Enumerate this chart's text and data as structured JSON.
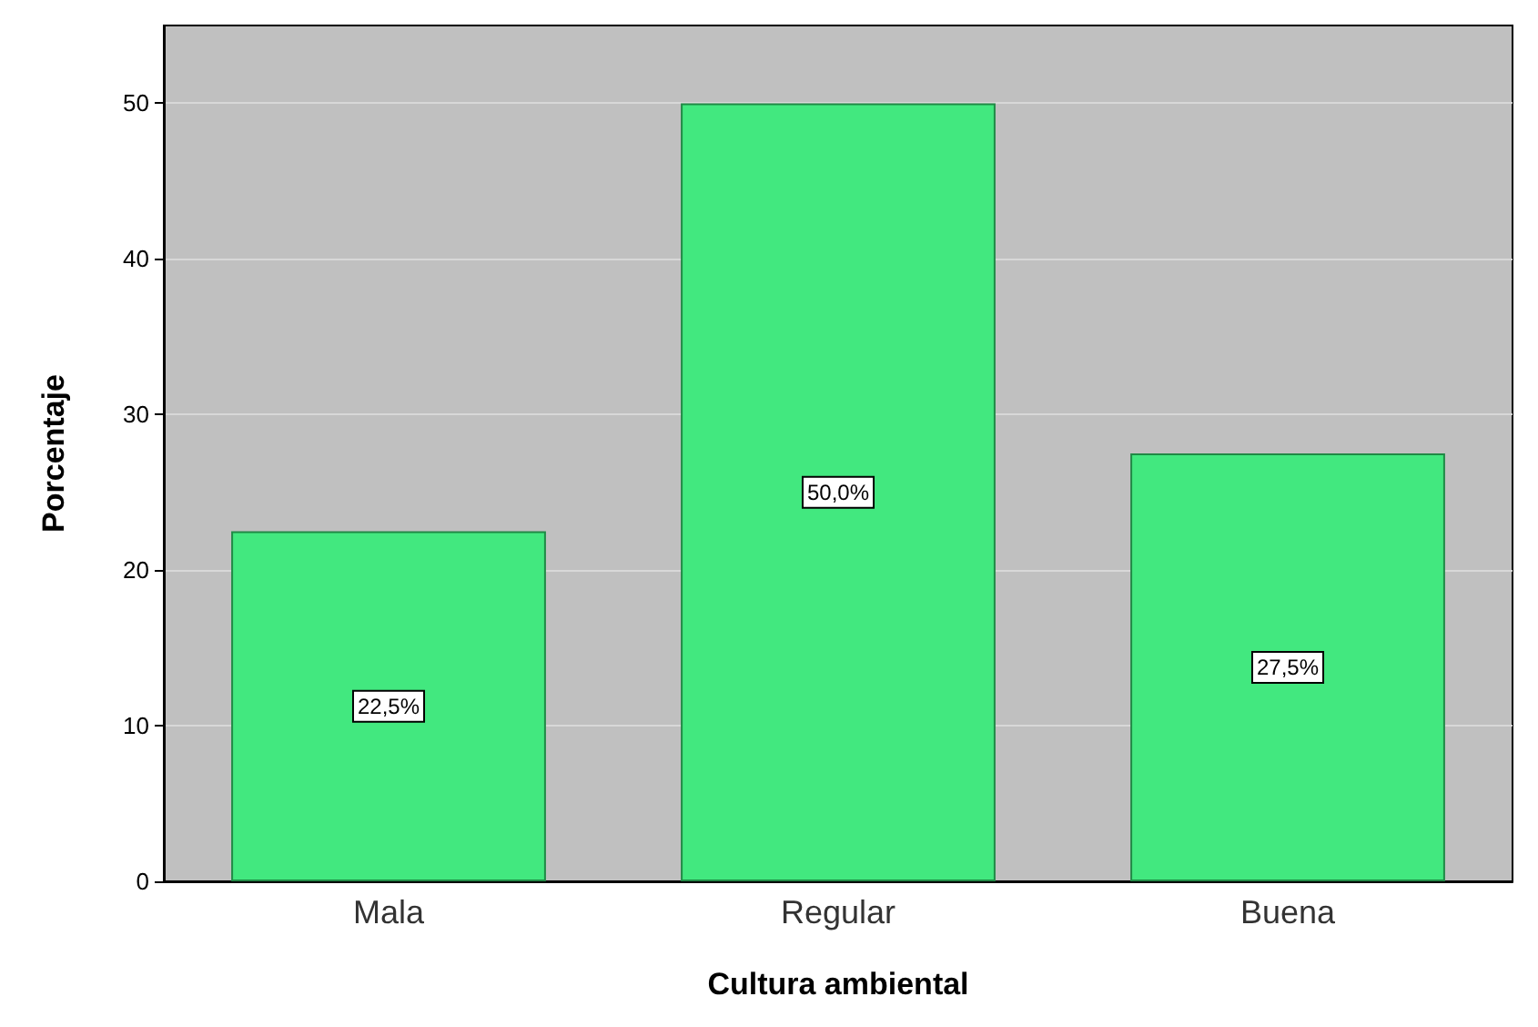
{
  "chart_data": {
    "type": "bar",
    "xlabel": "Cultura ambiental",
    "ylabel": "Porcentaje",
    "categories": [
      "Mala",
      "Regular",
      "Buena"
    ],
    "values": [
      22.5,
      50.0,
      27.5
    ],
    "value_labels": [
      "22,5%",
      "50,0%",
      "27,5%"
    ],
    "color": "#42e87f",
    "ylim": [
      0,
      55
    ],
    "yticks": [
      0,
      10,
      20,
      30,
      40,
      50
    ],
    "grid": "y"
  }
}
